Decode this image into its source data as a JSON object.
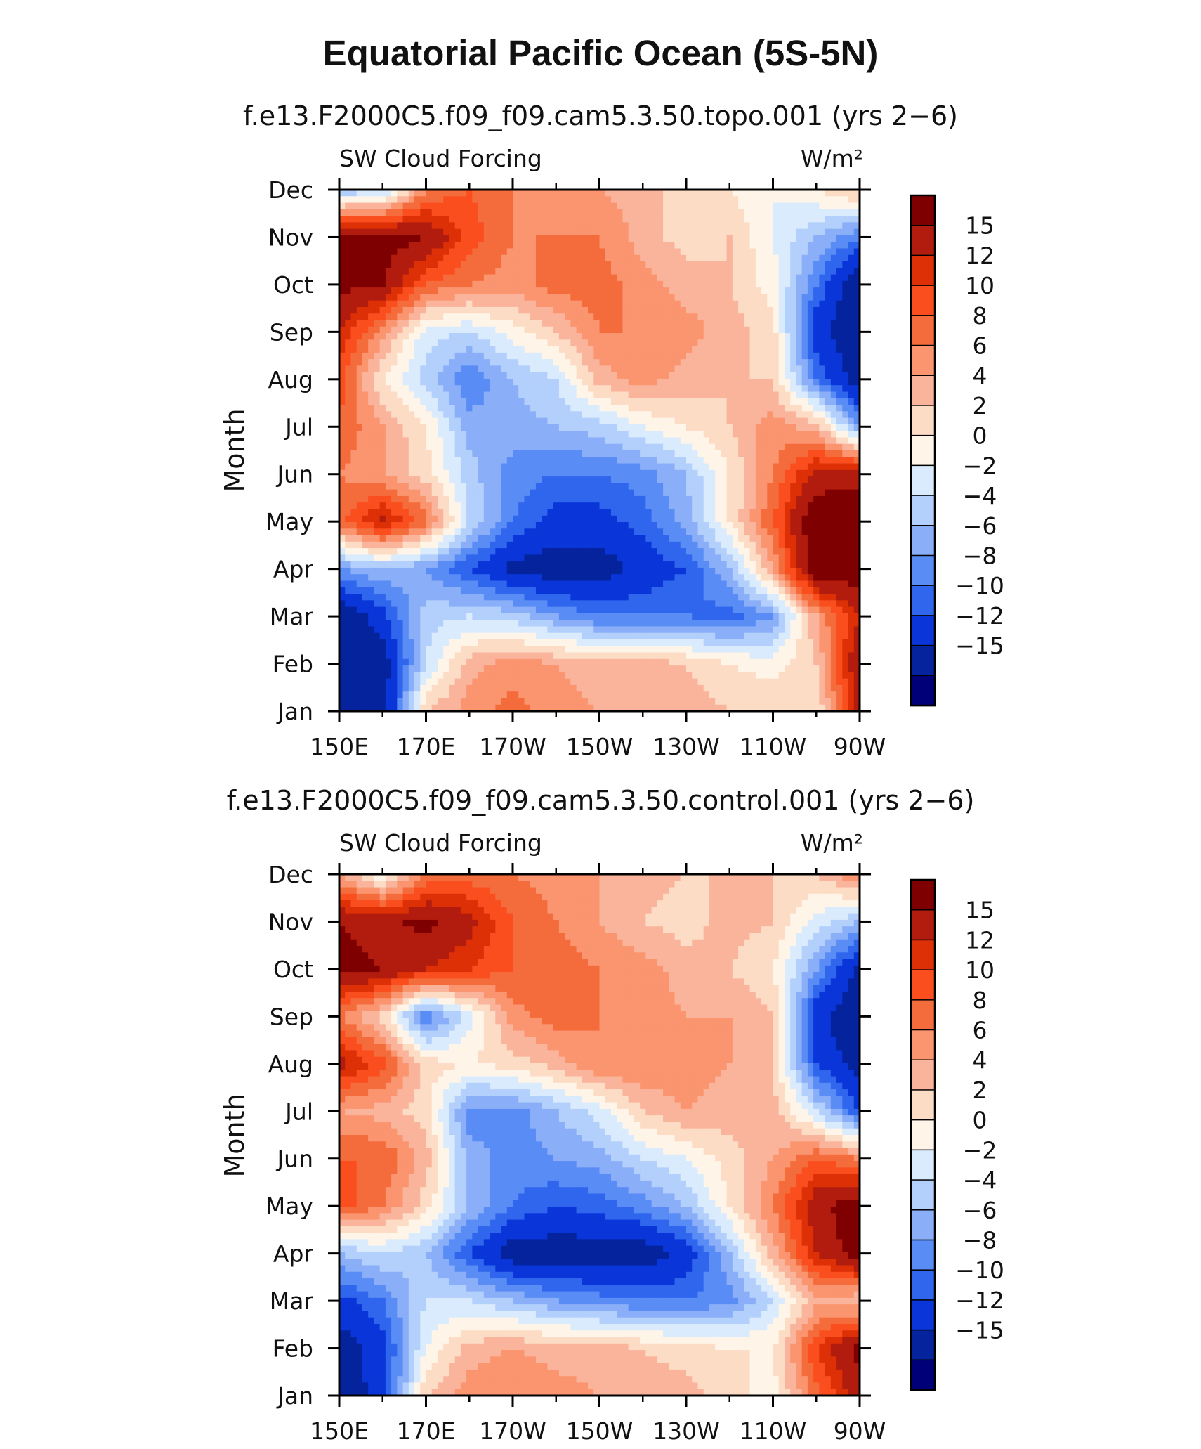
{
  "figure_title": "Equatorial Pacific Ocean (5S-5N)",
  "chart_data": [
    {
      "type": "heatmap",
      "title": "f.e13.F2000C5.f09_f09.cam5.3.50.topo.001 (yrs 2−6)",
      "subtitle_left": "SW Cloud Forcing",
      "subtitle_right": "W/m²",
      "xlabel": "",
      "ylabel": "Month",
      "x_units": "degrees longitude (E positive)",
      "x": [
        150,
        160,
        170,
        180,
        190,
        200,
        210,
        220,
        230,
        240,
        250,
        260,
        270
      ],
      "xlim": [
        150,
        270
      ],
      "x_tick_values": [
        150,
        170,
        190,
        210,
        230,
        250,
        270
      ],
      "x_tick_labels": [
        "150E",
        "170E",
        "170W",
        "150W",
        "130W",
        "110W",
        "90W"
      ],
      "y_tick_labels": [
        "Jan",
        "Feb",
        "Mar",
        "Apr",
        "May",
        "Jun",
        "Jul",
        "Aug",
        "Sep",
        "Oct",
        "Nov",
        "Dec"
      ],
      "z": [
        [
          -18,
          -17,
          2,
          5,
          7,
          5,
          4,
          4,
          3,
          2,
          2,
          0,
          13
        ],
        [
          -18,
          -17,
          -4,
          3,
          5,
          4,
          3,
          3,
          2,
          0,
          -1,
          2,
          15
        ],
        [
          -18,
          -13,
          -5,
          -4,
          -5,
          -8,
          -10,
          -10,
          -10,
          -11,
          -8,
          4,
          12
        ],
        [
          -8,
          -6,
          -8,
          -12,
          -16,
          -17,
          -17,
          -14,
          -12,
          -6,
          4,
          18,
          17
        ],
        [
          7,
          13,
          7,
          -4,
          -10,
          -13,
          -13,
          -11,
          -7,
          0,
          8,
          18,
          17
        ],
        [
          6,
          4,
          1,
          -5,
          -9,
          -10,
          -10,
          -9,
          -6,
          0,
          6,
          13,
          14
        ],
        [
          8,
          4,
          0,
          -7,
          -7,
          -6,
          -5,
          -2,
          0,
          2,
          5,
          3,
          -8
        ],
        [
          9,
          0,
          -5,
          -10,
          -6,
          -4,
          3,
          5,
          3,
          2,
          2,
          -10,
          -17
        ],
        [
          12,
          5,
          -3,
          -4,
          -1,
          2,
          6,
          6,
          5,
          3,
          1,
          -14,
          -18
        ],
        [
          16,
          15,
          8,
          6,
          5,
          7,
          7,
          5,
          3,
          2,
          -1,
          -10,
          -18
        ],
        [
          17,
          17,
          15,
          9,
          6,
          6,
          6,
          3,
          1,
          2,
          -2,
          -6,
          -10
        ],
        [
          -6,
          -5,
          6,
          8,
          6,
          5,
          4,
          3,
          1,
          0,
          -2,
          0,
          3
        ]
      ],
      "colorbar_labels": [
        "15",
        "12",
        "10",
        "8",
        "6",
        "4",
        "2",
        "0",
        "−2",
        "−4",
        "−6",
        "−8",
        "−10",
        "−12",
        "−15"
      ],
      "colorbar_colors": [
        "#7f0000",
        "#b21c0e",
        "#dd3007",
        "#fb4e1f",
        "#f56c3c",
        "#fa9570",
        "#fbb49c",
        "#fddcc5",
        "#fff4e8",
        "#d9ebfd",
        "#b3cffb",
        "#8aaef8",
        "#5a8cf5",
        "#2f66ed",
        "#0a36d9",
        "#05239c",
        "#000078"
      ]
    },
    {
      "type": "heatmap",
      "title": "f.e13.F2000C5.f09_f09.cam5.3.50.control.001 (yrs 2−6)",
      "subtitle_left": "SW Cloud Forcing",
      "subtitle_right": "W/m²",
      "xlabel": "",
      "ylabel": "Month",
      "x_units": "degrees longitude (E positive)",
      "x": [
        150,
        160,
        170,
        180,
        190,
        200,
        210,
        220,
        230,
        240,
        250,
        260,
        270
      ],
      "xlim": [
        150,
        270
      ],
      "x_tick_values": [
        150,
        170,
        190,
        210,
        230,
        250,
        270
      ],
      "x_tick_labels": [
        "150E",
        "170E",
        "170W",
        "150W",
        "130W",
        "110W",
        "90W"
      ],
      "y_tick_labels": [
        "Jan",
        "Feb",
        "Mar",
        "Apr",
        "May",
        "Jun",
        "Jul",
        "Aug",
        "Sep",
        "Oct",
        "Nov",
        "Dec"
      ],
      "z": [
        [
          -17,
          -14,
          2,
          5,
          6,
          5,
          4,
          3,
          3,
          1,
          -1,
          7,
          14
        ],
        [
          -17,
          -13,
          -2,
          3,
          4,
          3,
          3,
          2,
          1,
          0,
          0,
          10,
          16
        ],
        [
          -13,
          -10,
          -4,
          -4,
          -6,
          -8,
          -9,
          -10,
          -10,
          -9,
          -4,
          3,
          2
        ],
        [
          -6,
          -4,
          -6,
          -12,
          -17,
          -17,
          -17,
          -17,
          -14,
          -6,
          3,
          12,
          17
        ],
        [
          9,
          6,
          1,
          -6,
          -10,
          -12,
          -11,
          -9,
          -6,
          0,
          6,
          14,
          17
        ],
        [
          8,
          8,
          3,
          -7,
          -9,
          -8,
          -7,
          -4,
          -2,
          1,
          4,
          8,
          6
        ],
        [
          4,
          3,
          1,
          -9,
          -9,
          -6,
          -3,
          2,
          4,
          3,
          3,
          -4,
          -12
        ],
        [
          13,
          9,
          1,
          0,
          1,
          3,
          6,
          6,
          5,
          4,
          2,
          -12,
          -17
        ],
        [
          6,
          1,
          -10,
          -3,
          5,
          7,
          6,
          5,
          4,
          4,
          2,
          -14,
          -18
        ],
        [
          16,
          15,
          12,
          10,
          8,
          7,
          6,
          5,
          3,
          2,
          0,
          -8,
          -16
        ],
        [
          15,
          14,
          16,
          13,
          8,
          6,
          4,
          2,
          1,
          3,
          2,
          -3,
          -6
        ],
        [
          4,
          -2,
          6,
          7,
          6,
          5,
          4,
          3,
          2,
          2,
          2,
          2,
          6
        ]
      ],
      "colorbar_labels": [
        "15",
        "12",
        "10",
        "8",
        "6",
        "4",
        "2",
        "0",
        "−2",
        "−4",
        "−6",
        "−8",
        "−10",
        "−12",
        "−15"
      ],
      "colorbar_colors": [
        "#7f0000",
        "#b21c0e",
        "#dd3007",
        "#fb4e1f",
        "#f56c3c",
        "#fa9570",
        "#fbb49c",
        "#fddcc5",
        "#fff4e8",
        "#d9ebfd",
        "#b3cffb",
        "#8aaef8",
        "#5a8cf5",
        "#2f66ed",
        "#0a36d9",
        "#05239c",
        "#000078"
      ]
    }
  ]
}
